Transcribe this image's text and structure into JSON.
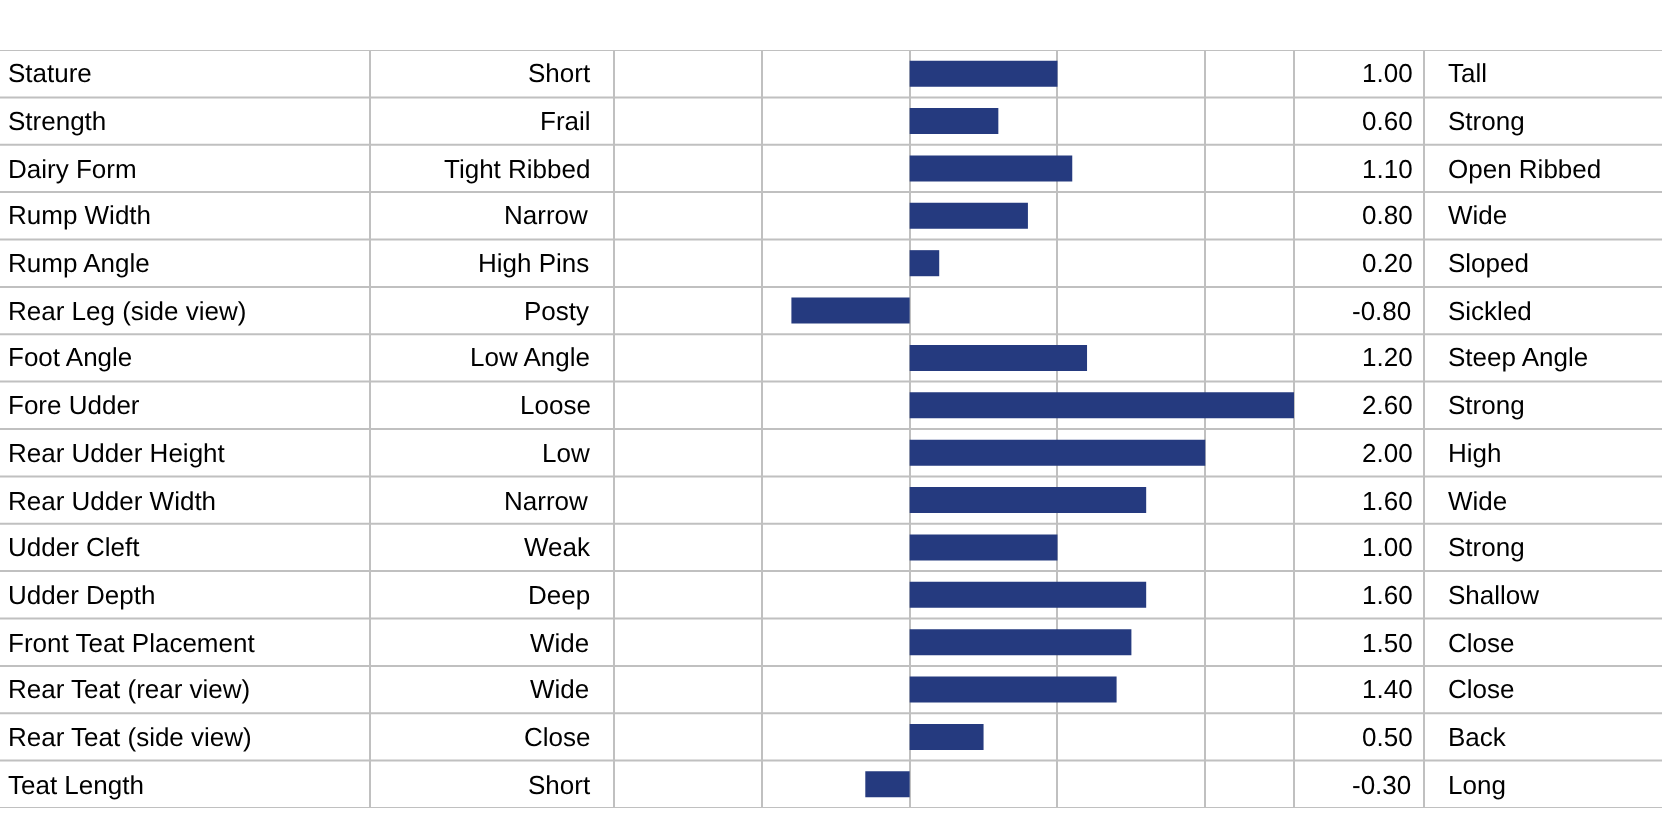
{
  "chart_data": {
    "type": "bar",
    "orientation": "horizontal",
    "categories": [
      "Stature",
      "Strength",
      "Dairy Form",
      "Rump Width",
      "Rump Angle",
      "Rear Leg (side view)",
      "Foot Angle",
      "Fore Udder",
      "Rear Udder Height",
      "Rear Udder Width",
      "Udder Cleft",
      "Udder Depth",
      "Front Teat Placement",
      "Rear Teat (rear view)",
      "Rear Teat (side view)",
      "Teat Length"
    ],
    "values": [
      1.0,
      0.6,
      1.1,
      0.8,
      0.2,
      -0.8,
      1.2,
      2.6,
      2.0,
      1.6,
      1.0,
      1.6,
      1.5,
      1.4,
      0.5,
      -0.3
    ],
    "value_labels": [
      "1.00",
      "0.60",
      "1.10",
      "0.80",
      "0.20",
      "-0.80",
      "1.20",
      "2.60",
      "2.00",
      "1.60",
      "1.00",
      "1.60",
      "1.50",
      "1.40",
      "0.50",
      "-0.30"
    ],
    "color": "#253a7f",
    "xlim": [
      -2,
      2.6
    ],
    "xticks": [
      {
        "value": -1,
        "label": null
      },
      {
        "value": 0,
        "label": null
      },
      {
        "value": 1,
        "label": null
      },
      {
        "value": 2,
        "label": null
      }
    ],
    "grid": "x",
    "tick_labels": false,
    "annotations": [
      "Short",
      "Frail",
      "Tight Ribbed",
      "Narrow",
      "High Pins",
      "Posty",
      "Low Angle",
      "Loose",
      "Low",
      "Narrow",
      "Weak",
      "Deep",
      "Wide",
      "Wide",
      "Close",
      "Short",
      "Tall",
      "Strong",
      "Open Ribbed",
      "Wide",
      "Sloped",
      "Sickled",
      "Steep Angle",
      "Strong",
      "High",
      "Wide",
      "Strong",
      "Shallow",
      "Close",
      "Close",
      "Back",
      "Long"
    ]
  }
}
